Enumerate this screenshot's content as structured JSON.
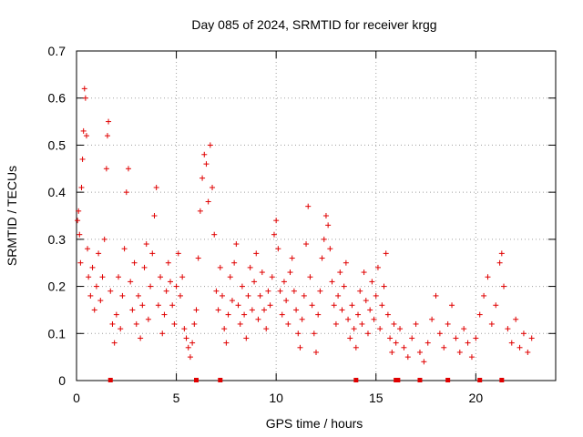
{
  "chart_data": {
    "type": "scatter",
    "title": "Day 085 of 2024, SRMTID for receiver krgg",
    "xlabel": "GPS time / hours",
    "ylabel": "SRMTID / TECUs",
    "xlim": [
      0,
      24
    ],
    "ylim": [
      0,
      0.7
    ],
    "xticks": [
      0,
      5,
      10,
      15,
      20
    ],
    "xtick_labels": [
      "0",
      "5",
      "10",
      "15",
      "20"
    ],
    "yticks": [
      0,
      0.1,
      0.2,
      0.3,
      0.4,
      0.5,
      0.6,
      0.7
    ],
    "ytick_labels": [
      "0",
      "0.1",
      "0.2",
      "0.3",
      "0.4",
      "0.5",
      "0.6",
      "0.7"
    ],
    "grid": true,
    "marker": "plus",
    "color": "#e00000",
    "series": [
      {
        "name": "SRMTID",
        "points": [
          [
            0.05,
            0.34
          ],
          [
            0.1,
            0.36
          ],
          [
            0.15,
            0.31
          ],
          [
            0.2,
            0.25
          ],
          [
            0.25,
            0.41
          ],
          [
            0.3,
            0.47
          ],
          [
            0.35,
            0.53
          ],
          [
            0.4,
            0.62
          ],
          [
            0.45,
            0.6
          ],
          [
            0.5,
            0.52
          ],
          [
            0.55,
            0.28
          ],
          [
            0.6,
            0.22
          ],
          [
            0.7,
            0.18
          ],
          [
            0.8,
            0.24
          ],
          [
            0.9,
            0.15
          ],
          [
            1.0,
            0.2
          ],
          [
            1.1,
            0.27
          ],
          [
            1.2,
            0.17
          ],
          [
            1.3,
            0.22
          ],
          [
            1.4,
            0.3
          ],
          [
            1.5,
            0.45
          ],
          [
            1.55,
            0.52
          ],
          [
            1.6,
            0.55
          ],
          [
            1.7,
            0.19
          ],
          [
            1.8,
            0.12
          ],
          [
            1.9,
            0.08
          ],
          [
            2.0,
            0.14
          ],
          [
            2.1,
            0.22
          ],
          [
            2.2,
            0.11
          ],
          [
            2.3,
            0.18
          ],
          [
            2.4,
            0.28
          ],
          [
            2.5,
            0.4
          ],
          [
            2.6,
            0.45
          ],
          [
            2.7,
            0.21
          ],
          [
            2.8,
            0.15
          ],
          [
            2.9,
            0.25
          ],
          [
            3.0,
            0.12
          ],
          [
            3.1,
            0.18
          ],
          [
            3.2,
            0.09
          ],
          [
            3.3,
            0.16
          ],
          [
            3.4,
            0.24
          ],
          [
            3.5,
            0.29
          ],
          [
            3.6,
            0.13
          ],
          [
            3.7,
            0.2
          ],
          [
            3.8,
            0.27
          ],
          [
            3.9,
            0.35
          ],
          [
            4.0,
            0.41
          ],
          [
            4.1,
            0.16
          ],
          [
            4.2,
            0.22
          ],
          [
            4.3,
            0.1
          ],
          [
            4.4,
            0.14
          ],
          [
            4.5,
            0.19
          ],
          [
            4.6,
            0.25
          ],
          [
            4.7,
            0.21
          ],
          [
            4.8,
            0.16
          ],
          [
            4.9,
            0.12
          ],
          [
            5.0,
            0.2
          ],
          [
            5.1,
            0.27
          ],
          [
            5.2,
            0.18
          ],
          [
            5.3,
            0.22
          ],
          [
            5.4,
            0.11
          ],
          [
            5.5,
            0.09
          ],
          [
            5.6,
            0.07
          ],
          [
            5.7,
            0.05
          ],
          [
            5.8,
            0.08
          ],
          [
            5.9,
            0.12
          ],
          [
            6.0,
            0.15
          ],
          [
            6.1,
            0.26
          ],
          [
            6.2,
            0.36
          ],
          [
            6.3,
            0.43
          ],
          [
            6.4,
            0.48
          ],
          [
            6.5,
            0.46
          ],
          [
            6.6,
            0.38
          ],
          [
            6.7,
            0.5
          ],
          [
            6.8,
            0.41
          ],
          [
            6.9,
            0.31
          ],
          [
            7.0,
            0.19
          ],
          [
            7.1,
            0.15
          ],
          [
            7.2,
            0.24
          ],
          [
            7.3,
            0.18
          ],
          [
            7.4,
            0.11
          ],
          [
            7.5,
            0.08
          ],
          [
            7.6,
            0.14
          ],
          [
            7.7,
            0.22
          ],
          [
            7.8,
            0.17
          ],
          [
            7.9,
            0.25
          ],
          [
            8.0,
            0.29
          ],
          [
            8.1,
            0.16
          ],
          [
            8.2,
            0.12
          ],
          [
            8.3,
            0.2
          ],
          [
            8.4,
            0.14
          ],
          [
            8.5,
            0.09
          ],
          [
            8.6,
            0.18
          ],
          [
            8.7,
            0.24
          ],
          [
            8.8,
            0.15
          ],
          [
            8.9,
            0.21
          ],
          [
            9.0,
            0.27
          ],
          [
            9.1,
            0.13
          ],
          [
            9.2,
            0.18
          ],
          [
            9.3,
            0.23
          ],
          [
            9.4,
            0.15
          ],
          [
            9.5,
            0.11
          ],
          [
            9.6,
            0.19
          ],
          [
            9.7,
            0.16
          ],
          [
            9.8,
            0.22
          ],
          [
            9.9,
            0.31
          ],
          [
            10.0,
            0.34
          ],
          [
            10.1,
            0.28
          ],
          [
            10.2,
            0.19
          ],
          [
            10.3,
            0.14
          ],
          [
            10.4,
            0.21
          ],
          [
            10.5,
            0.17
          ],
          [
            10.6,
            0.12
          ],
          [
            10.7,
            0.23
          ],
          [
            10.8,
            0.26
          ],
          [
            10.9,
            0.19
          ],
          [
            11.0,
            0.15
          ],
          [
            11.1,
            0.1
          ],
          [
            11.2,
            0.07
          ],
          [
            11.3,
            0.13
          ],
          [
            11.4,
            0.18
          ],
          [
            11.5,
            0.29
          ],
          [
            11.6,
            0.37
          ],
          [
            11.7,
            0.22
          ],
          [
            11.8,
            0.16
          ],
          [
            11.9,
            0.1
          ],
          [
            12.0,
            0.06
          ],
          [
            12.1,
            0.14
          ],
          [
            12.2,
            0.19
          ],
          [
            12.3,
            0.26
          ],
          [
            12.4,
            0.3
          ],
          [
            12.5,
            0.35
          ],
          [
            12.6,
            0.33
          ],
          [
            12.7,
            0.28
          ],
          [
            12.8,
            0.21
          ],
          [
            12.9,
            0.16
          ],
          [
            13.0,
            0.12
          ],
          [
            13.1,
            0.18
          ],
          [
            13.2,
            0.23
          ],
          [
            13.3,
            0.15
          ],
          [
            13.4,
            0.2
          ],
          [
            13.5,
            0.25
          ],
          [
            13.6,
            0.13
          ],
          [
            13.7,
            0.09
          ],
          [
            13.8,
            0.16
          ],
          [
            13.9,
            0.11
          ],
          [
            14.0,
            0.07
          ],
          [
            14.1,
            0.14
          ],
          [
            14.2,
            0.19
          ],
          [
            14.3,
            0.12
          ],
          [
            14.4,
            0.23
          ],
          [
            14.5,
            0.17
          ],
          [
            14.6,
            0.1
          ],
          [
            14.7,
            0.15
          ],
          [
            14.8,
            0.21
          ],
          [
            14.9,
            0.13
          ],
          [
            15.0,
            0.18
          ],
          [
            15.1,
            0.24
          ],
          [
            15.2,
            0.11
          ],
          [
            15.3,
            0.16
          ],
          [
            15.4,
            0.2
          ],
          [
            15.5,
            0.27
          ],
          [
            15.6,
            0.14
          ],
          [
            15.7,
            0.09
          ],
          [
            15.8,
            0.06
          ],
          [
            15.9,
            0.12
          ],
          [
            16.0,
            0.08
          ],
          [
            16.2,
            0.11
          ],
          [
            16.4,
            0.07
          ],
          [
            16.6,
            0.05
          ],
          [
            16.8,
            0.09
          ],
          [
            17.0,
            0.12
          ],
          [
            17.2,
            0.06
          ],
          [
            17.4,
            0.04
          ],
          [
            17.6,
            0.08
          ],
          [
            17.8,
            0.13
          ],
          [
            18.0,
            0.18
          ],
          [
            18.2,
            0.1
          ],
          [
            18.4,
            0.07
          ],
          [
            18.6,
            0.12
          ],
          [
            18.8,
            0.16
          ],
          [
            19.0,
            0.09
          ],
          [
            19.2,
            0.06
          ],
          [
            19.4,
            0.11
          ],
          [
            19.6,
            0.08
          ],
          [
            19.8,
            0.05
          ],
          [
            20.0,
            0.09
          ],
          [
            20.2,
            0.14
          ],
          [
            20.4,
            0.18
          ],
          [
            20.6,
            0.22
          ],
          [
            20.8,
            0.12
          ],
          [
            21.0,
            0.16
          ],
          [
            21.2,
            0.25
          ],
          [
            21.3,
            0.27
          ],
          [
            21.4,
            0.2
          ],
          [
            21.6,
            0.11
          ],
          [
            21.8,
            0.08
          ],
          [
            22.0,
            0.13
          ],
          [
            22.2,
            0.07
          ],
          [
            22.4,
            0.1
          ],
          [
            22.6,
            0.06
          ],
          [
            22.8,
            0.09
          ]
        ]
      }
    ],
    "axis_markers": [
      1.7,
      6.0,
      7.2,
      14.0,
      16.0,
      16.1,
      17.2,
      18.6,
      20.2,
      21.3
    ]
  }
}
